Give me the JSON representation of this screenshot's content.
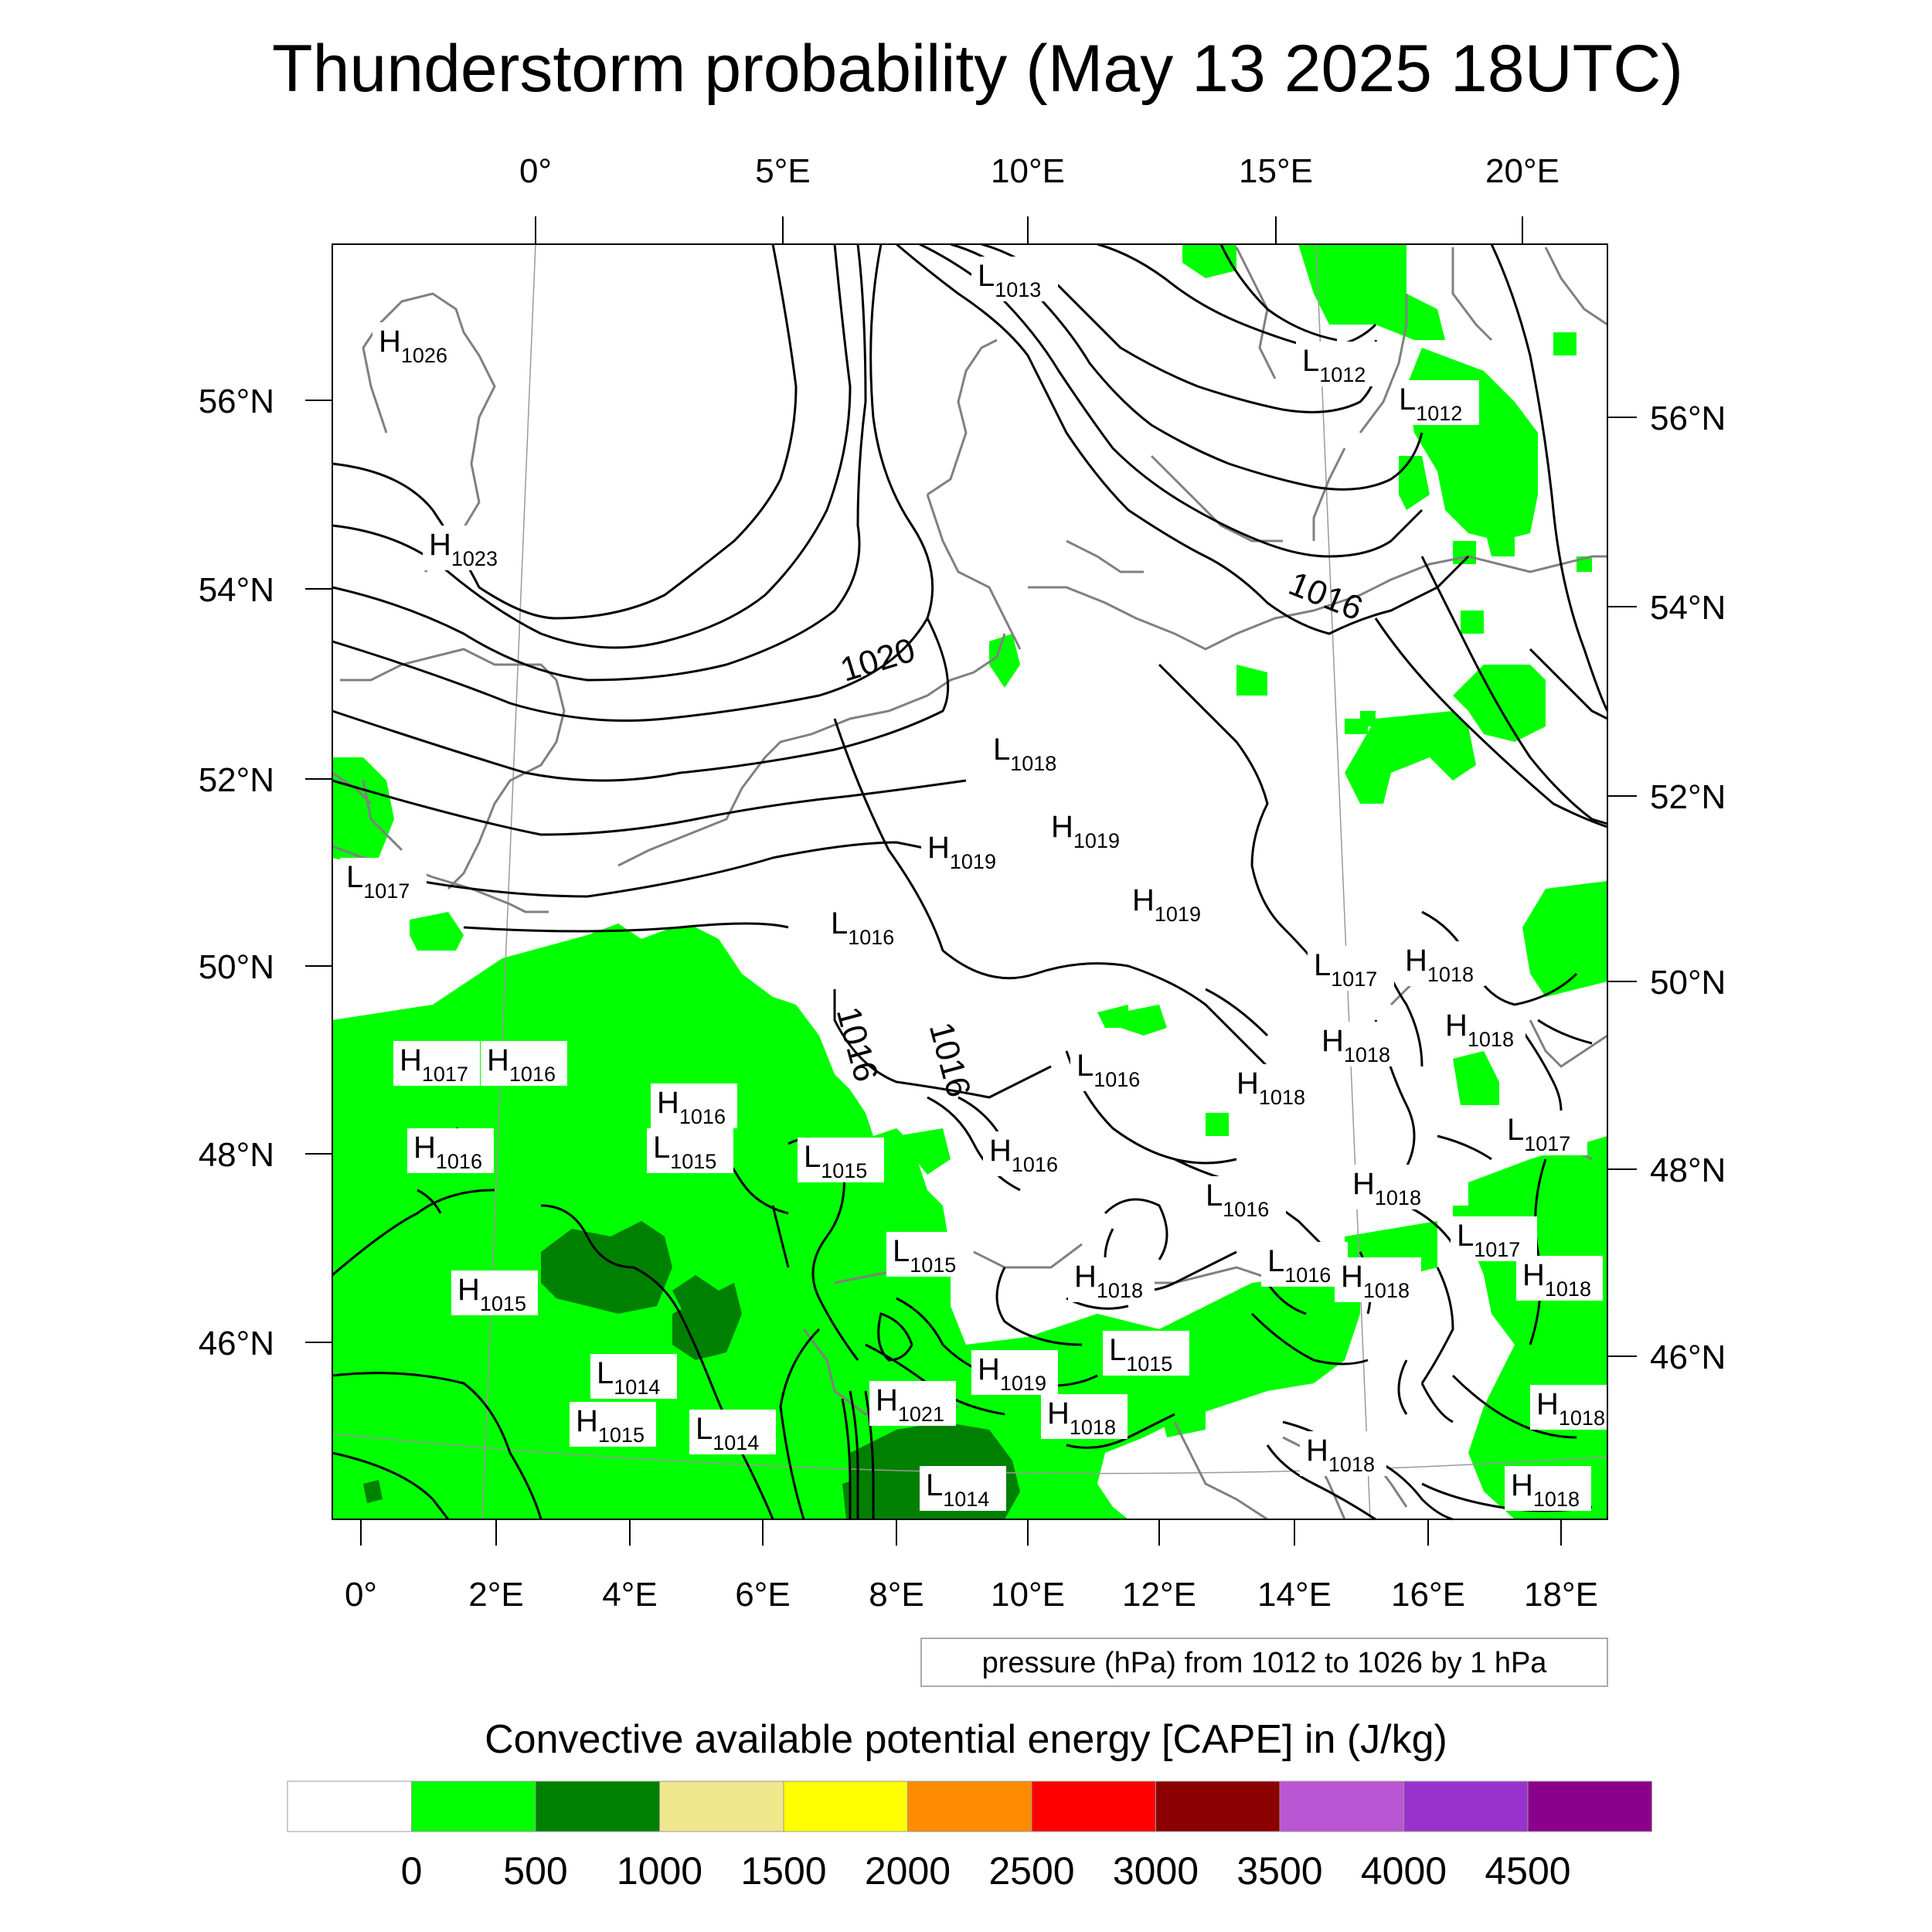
{
  "title": "Thunderstorm probability (May 13 2025 18UTC)",
  "top_lon_labels": [
    "0°",
    "5°E",
    "10°E",
    "15°E",
    "20°E"
  ],
  "bottom_lon_labels": [
    "0°",
    "2°E",
    "4°E",
    "6°E",
    "8°E",
    "10°E",
    "12°E",
    "14°E",
    "16°E",
    "18°E"
  ],
  "left_lat_labels": [
    "56°N",
    "54°N",
    "52°N",
    "50°N",
    "48°N",
    "46°N"
  ],
  "right_lat_labels": [
    "56°N",
    "54°N",
    "52°N",
    "50°N",
    "48°N",
    "46°N"
  ],
  "pressure_note": "pressure (hPa) from 1012 to 1026 by 1 hPa",
  "isobar_labels": [
    "1020",
    "1016",
    "1016",
    "1016"
  ],
  "pressure_centers": [
    {
      "type": "L",
      "value": "1013"
    },
    {
      "type": "H",
      "value": "1026"
    },
    {
      "type": "L",
      "value": "1012"
    },
    {
      "type": "L",
      "value": "1012"
    },
    {
      "type": "H",
      "value": "1023"
    },
    {
      "type": "L",
      "value": "1018"
    },
    {
      "type": "H",
      "value": "1019"
    },
    {
      "type": "H",
      "value": "1019"
    },
    {
      "type": "H",
      "value": "1019"
    },
    {
      "type": "L",
      "value": "1017"
    },
    {
      "type": "L",
      "value": "1016"
    },
    {
      "type": "L",
      "value": "1017"
    },
    {
      "type": "H",
      "value": "1018"
    },
    {
      "type": "H",
      "value": "1018"
    },
    {
      "type": "H",
      "value": "1018"
    },
    {
      "type": "H",
      "value": "1017"
    },
    {
      "type": "H",
      "value": "1016"
    },
    {
      "type": "L",
      "value": "1016"
    },
    {
      "type": "H",
      "value": "1018"
    },
    {
      "type": "H",
      "value": "1016"
    },
    {
      "type": "L",
      "value": "1015"
    },
    {
      "type": "L",
      "value": "1015"
    },
    {
      "type": "H",
      "value": "1016"
    },
    {
      "type": "H",
      "value": "1016"
    },
    {
      "type": "L",
      "value": "1017"
    },
    {
      "type": "H",
      "value": "1018"
    },
    {
      "type": "L",
      "value": "1016"
    },
    {
      "type": "L",
      "value": "1015"
    },
    {
      "type": "L",
      "value": "1017"
    },
    {
      "type": "H",
      "value": "1015"
    },
    {
      "type": "H",
      "value": "1018"
    },
    {
      "type": "L",
      "value": "1016"
    },
    {
      "type": "H",
      "value": "1018"
    },
    {
      "type": "H",
      "value": "1018"
    },
    {
      "type": "L",
      "value": "1014"
    },
    {
      "type": "L",
      "value": "1015"
    },
    {
      "type": "H",
      "value": "1019"
    },
    {
      "type": "H",
      "value": "1021"
    },
    {
      "type": "H",
      "value": "1018"
    },
    {
      "type": "H",
      "value": "1015"
    },
    {
      "type": "L",
      "value": "1014"
    },
    {
      "type": "H",
      "value": "1018"
    },
    {
      "type": "L",
      "value": "1014"
    },
    {
      "type": "H",
      "value": "1018"
    },
    {
      "type": "H",
      "value": "1018"
    }
  ],
  "legend": {
    "title": "Convective available potential energy [CAPE] in (J/kg)",
    "colors": [
      "#ffffff",
      "#00ff00",
      "#008000",
      "#f0e68c",
      "#ffff00",
      "#ff8c00",
      "#ff0000",
      "#8b0000",
      "#ba55d3",
      "#9932cc",
      "#8b008b"
    ],
    "ticks": [
      "0",
      "500",
      "1000",
      "1500",
      "2000",
      "2500",
      "3000",
      "3500",
      "4000",
      "4500"
    ]
  }
}
